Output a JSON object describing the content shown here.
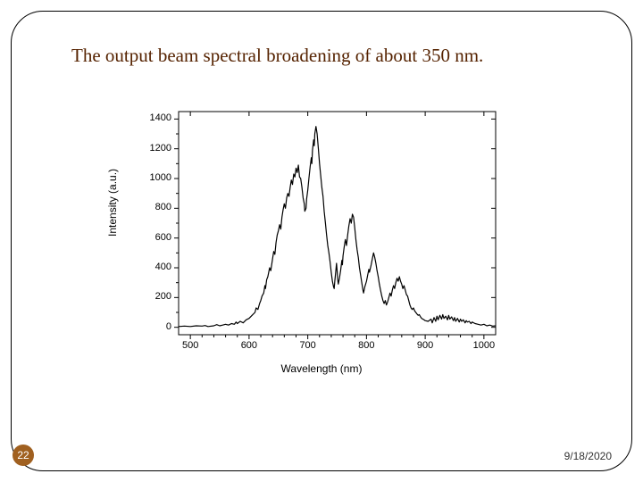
{
  "title": "The output beam spectral broadening of about 350 nm.",
  "page_number": "22",
  "date": "9/18/2020",
  "chart": {
    "type": "line",
    "xlabel": "Wavelength (nm)",
    "ylabel": "Intensity (a.u.)",
    "xlim": [
      480,
      1020
    ],
    "ylim": [
      -50,
      1450
    ],
    "xticks": [
      500,
      600,
      700,
      800,
      900,
      1000
    ],
    "yticks": [
      0,
      200,
      400,
      600,
      800,
      1000,
      1200,
      1400
    ],
    "line_color": "#000000",
    "line_width": 1.2,
    "background_color": "#ffffff",
    "axis_color": "#000000",
    "tick_fontsize": 11,
    "label_fontsize": 12,
    "data": [
      [
        480,
        5
      ],
      [
        490,
        8
      ],
      [
        500,
        5
      ],
      [
        510,
        10
      ],
      [
        520,
        8
      ],
      [
        525,
        12
      ],
      [
        530,
        5
      ],
      [
        540,
        10
      ],
      [
        545,
        18
      ],
      [
        550,
        10
      ],
      [
        555,
        15
      ],
      [
        560,
        20
      ],
      [
        565,
        15
      ],
      [
        570,
        25
      ],
      [
        575,
        20
      ],
      [
        578,
        35
      ],
      [
        580,
        25
      ],
      [
        585,
        40
      ],
      [
        590,
        30
      ],
      [
        595,
        50
      ],
      [
        600,
        60
      ],
      [
        605,
        80
      ],
      [
        610,
        100
      ],
      [
        612,
        130
      ],
      [
        615,
        120
      ],
      [
        618,
        160
      ],
      [
        620,
        180
      ],
      [
        622,
        210
      ],
      [
        625,
        230
      ],
      [
        627,
        280
      ],
      [
        628,
        260
      ],
      [
        630,
        320
      ],
      [
        632,
        340
      ],
      [
        635,
        400
      ],
      [
        637,
        380
      ],
      [
        640,
        460
      ],
      [
        642,
        510
      ],
      [
        644,
        490
      ],
      [
        646,
        570
      ],
      [
        648,
        620
      ],
      [
        650,
        650
      ],
      [
        652,
        690
      ],
      [
        654,
        660
      ],
      [
        656,
        740
      ],
      [
        658,
        790
      ],
      [
        660,
        830
      ],
      [
        662,
        800
      ],
      [
        664,
        870
      ],
      [
        666,
        900
      ],
      [
        668,
        880
      ],
      [
        670,
        940
      ],
      [
        672,
        990
      ],
      [
        674,
        960
      ],
      [
        676,
        1030
      ],
      [
        678,
        1010
      ],
      [
        680,
        1070
      ],
      [
        682,
        1040
      ],
      [
        684,
        1090
      ],
      [
        686,
        1010
      ],
      [
        688,
        1000
      ],
      [
        690,
        940
      ],
      [
        692,
        870
      ],
      [
        694,
        830
      ],
      [
        695,
        780
      ],
      [
        697,
        800
      ],
      [
        698,
        860
      ],
      [
        700,
        920
      ],
      [
        702,
        1000
      ],
      [
        704,
        1080
      ],
      [
        706,
        1140
      ],
      [
        707,
        1100
      ],
      [
        708,
        1190
      ],
      [
        710,
        1260
      ],
      [
        711,
        1220
      ],
      [
        712,
        1300
      ],
      [
        714,
        1350
      ],
      [
        716,
        1300
      ],
      [
        718,
        1200
      ],
      [
        720,
        1100
      ],
      [
        722,
        1020
      ],
      [
        724,
        940
      ],
      [
        726,
        880
      ],
      [
        728,
        780
      ],
      [
        730,
        700
      ],
      [
        732,
        620
      ],
      [
        734,
        550
      ],
      [
        736,
        500
      ],
      [
        738,
        440
      ],
      [
        740,
        370
      ],
      [
        742,
        310
      ],
      [
        744,
        270
      ],
      [
        745,
        260
      ],
      [
        746,
        310
      ],
      [
        748,
        390
      ],
      [
        749,
        430
      ],
      [
        750,
        380
      ],
      [
        751,
        320
      ],
      [
        752,
        290
      ],
      [
        754,
        330
      ],
      [
        756,
        380
      ],
      [
        758,
        450
      ],
      [
        759,
        420
      ],
      [
        760,
        480
      ],
      [
        762,
        540
      ],
      [
        764,
        590
      ],
      [
        766,
        550
      ],
      [
        768,
        620
      ],
      [
        770,
        680
      ],
      [
        772,
        730
      ],
      [
        774,
        700
      ],
      [
        776,
        760
      ],
      [
        778,
        740
      ],
      [
        780,
        670
      ],
      [
        782,
        590
      ],
      [
        784,
        520
      ],
      [
        786,
        470
      ],
      [
        788,
        400
      ],
      [
        790,
        350
      ],
      [
        792,
        300
      ],
      [
        794,
        250
      ],
      [
        795,
        230
      ],
      [
        797,
        270
      ],
      [
        800,
        310
      ],
      [
        802,
        350
      ],
      [
        804,
        390
      ],
      [
        805,
        370
      ],
      [
        808,
        420
      ],
      [
        810,
        460
      ],
      [
        812,
        500
      ],
      [
        814,
        470
      ],
      [
        816,
        430
      ],
      [
        818,
        380
      ],
      [
        820,
        340
      ],
      [
        822,
        290
      ],
      [
        824,
        250
      ],
      [
        826,
        210
      ],
      [
        828,
        180
      ],
      [
        830,
        160
      ],
      [
        832,
        180
      ],
      [
        834,
        150
      ],
      [
        836,
        170
      ],
      [
        838,
        200
      ],
      [
        840,
        230
      ],
      [
        842,
        210
      ],
      [
        844,
        250
      ],
      [
        846,
        280
      ],
      [
        848,
        260
      ],
      [
        850,
        300
      ],
      [
        852,
        330
      ],
      [
        854,
        310
      ],
      [
        856,
        340
      ],
      [
        858,
        310
      ],
      [
        860,
        290
      ],
      [
        862,
        260
      ],
      [
        864,
        280
      ],
      [
        866,
        250
      ],
      [
        868,
        220
      ],
      [
        870,
        210
      ],
      [
        872,
        180
      ],
      [
        874,
        150
      ],
      [
        876,
        130
      ],
      [
        878,
        120
      ],
      [
        880,
        130
      ],
      [
        882,
        110
      ],
      [
        884,
        100
      ],
      [
        886,
        90
      ],
      [
        888,
        80
      ],
      [
        890,
        85
      ],
      [
        892,
        70
      ],
      [
        894,
        60
      ],
      [
        896,
        55
      ],
      [
        898,
        50
      ],
      [
        900,
        45
      ],
      [
        905,
        40
      ],
      [
        910,
        55
      ],
      [
        912,
        30
      ],
      [
        915,
        65
      ],
      [
        918,
        40
      ],
      [
        920,
        75
      ],
      [
        922,
        50
      ],
      [
        925,
        80
      ],
      [
        928,
        55
      ],
      [
        930,
        85
      ],
      [
        932,
        60
      ],
      [
        935,
        75
      ],
      [
        938,
        50
      ],
      [
        940,
        80
      ],
      [
        942,
        55
      ],
      [
        945,
        70
      ],
      [
        948,
        45
      ],
      [
        950,
        65
      ],
      [
        952,
        40
      ],
      [
        955,
        60
      ],
      [
        958,
        35
      ],
      [
        960,
        55
      ],
      [
        962,
        40
      ],
      [
        965,
        50
      ],
      [
        968,
        30
      ],
      [
        970,
        45
      ],
      [
        972,
        35
      ],
      [
        975,
        40
      ],
      [
        978,
        25
      ],
      [
        980,
        35
      ],
      [
        985,
        25
      ],
      [
        990,
        20
      ],
      [
        995,
        15
      ],
      [
        1000,
        20
      ],
      [
        1005,
        10
      ],
      [
        1010,
        15
      ],
      [
        1015,
        8
      ],
      [
        1020,
        10
      ]
    ]
  }
}
